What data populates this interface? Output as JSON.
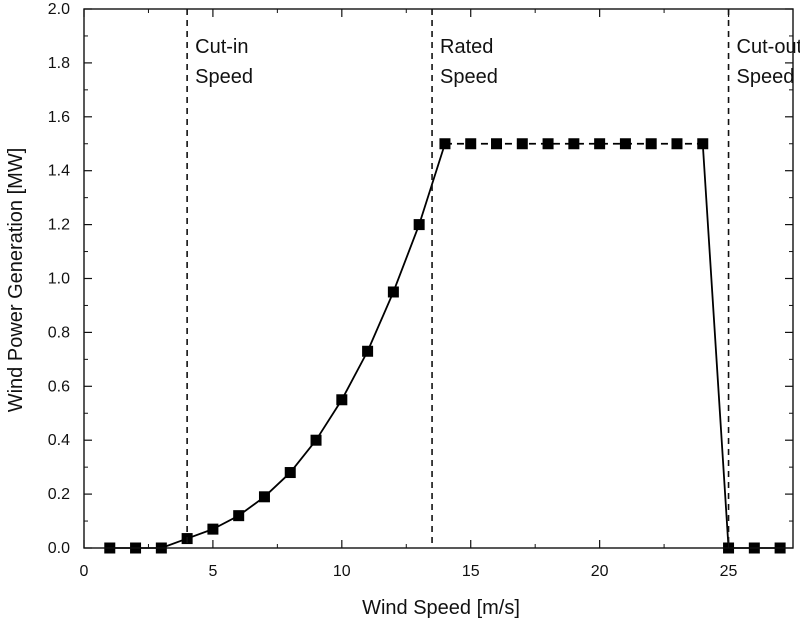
{
  "chart_data": {
    "type": "line",
    "title": "",
    "xlabel": "Wind Speed [m/s]",
    "ylabel": "Wind Power Generation [MW]",
    "xlim": [
      0,
      27.5
    ],
    "ylim": [
      0,
      2.0
    ],
    "xticks": [
      0,
      5,
      10,
      15,
      20,
      25
    ],
    "yticks": [
      0.0,
      0.2,
      0.4,
      0.6,
      0.8,
      1.0,
      1.2,
      1.4,
      1.6,
      1.8,
      2.0
    ],
    "ytick_labels": [
      "0.0",
      "0.2",
      "0.4",
      "0.6",
      "0.8",
      "1.0",
      "1.2",
      "1.4",
      "1.6",
      "1.8",
      "2.0"
    ],
    "grid": false,
    "series": [
      {
        "marker": "square",
        "color": "#000000",
        "x": [
          1,
          2,
          3,
          4,
          5,
          6,
          7,
          8,
          9,
          10,
          11,
          12,
          13,
          14,
          15,
          16,
          17,
          18,
          19,
          20,
          21,
          22,
          23,
          24,
          25,
          26,
          27
        ],
        "y": [
          0,
          0,
          0,
          0.035,
          0.07,
          0.12,
          0.19,
          0.28,
          0.4,
          0.55,
          0.73,
          0.95,
          1.2,
          1.5,
          1.5,
          1.5,
          1.5,
          1.5,
          1.5,
          1.5,
          1.5,
          1.5,
          1.5,
          1.5,
          0,
          0,
          0
        ]
      }
    ],
    "vlines": [
      {
        "x": 4,
        "style": "dashed",
        "label_lines": [
          "Cut-in",
          "Speed"
        ]
      },
      {
        "x": 13.5,
        "style": "dashed",
        "label_lines": [
          "Rated",
          "Speed"
        ]
      },
      {
        "x": 25,
        "style": "dashed",
        "label_lines": [
          "Cut-out",
          "Speed"
        ]
      }
    ]
  }
}
